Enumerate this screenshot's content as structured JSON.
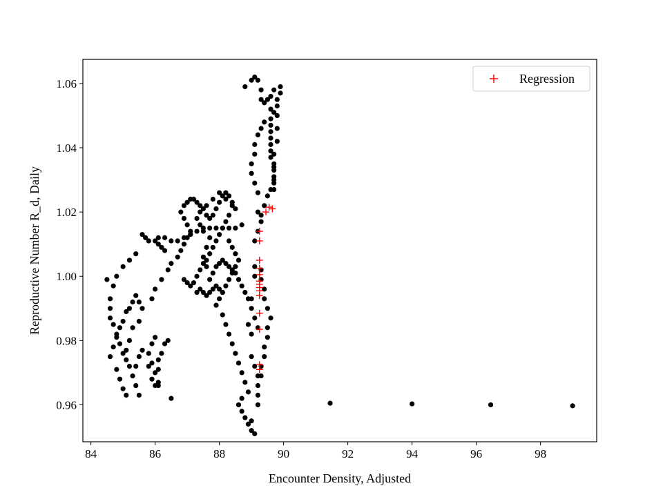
{
  "chart_data": {
    "type": "scatter",
    "title": "",
    "xlabel": "Encounter Density, Adjusted",
    "ylabel": "Reproductive Number R_d, Daily",
    "xlim": [
      83.75,
      99.75
    ],
    "ylim": [
      0.9485,
      1.0675
    ],
    "x_ticks": [
      84,
      86,
      88,
      90,
      92,
      94,
      96,
      98
    ],
    "y_ticks": [
      0.96,
      0.98,
      1.0,
      1.02,
      1.04,
      1.06
    ],
    "x_tick_labels": [
      "84",
      "86",
      "88",
      "90",
      "92",
      "94",
      "96",
      "98"
    ],
    "y_tick_labels": [
      "0.96",
      "0.98",
      "1.00",
      "1.02",
      "1.04",
      "1.06"
    ],
    "grid": false,
    "legend_position": "top-right",
    "series": [
      {
        "marker": "circle",
        "color": "#000000",
        "points": [
          [
            84.5,
            0.999
          ],
          [
            84.6,
            0.993
          ],
          [
            84.7,
            0.997
          ],
          [
            84.6,
            0.99
          ],
          [
            84.6,
            0.987
          ],
          [
            84.7,
            0.985
          ],
          [
            84.8,
            0.982
          ],
          [
            84.9,
            0.979
          ],
          [
            85.0,
            0.976
          ],
          [
            85.1,
            0.974
          ],
          [
            85.2,
            0.972
          ],
          [
            85.3,
            0.969
          ],
          [
            85.4,
            0.966
          ],
          [
            85.5,
            0.963
          ],
          [
            85.3,
            0.984
          ],
          [
            85.2,
            0.98
          ],
          [
            85.1,
            0.977
          ],
          [
            84.6,
            0.975
          ],
          [
            84.8,
            1.0
          ],
          [
            85.0,
            1.003
          ],
          [
            85.2,
            1.005
          ],
          [
            85.4,
            1.007
          ],
          [
            85.6,
            1.013
          ],
          [
            85.7,
            1.012
          ],
          [
            85.8,
            1.011
          ],
          [
            86.0,
            1.011
          ],
          [
            86.1,
            1.01
          ],
          [
            86.2,
            1.009
          ],
          [
            86.3,
            1.008
          ],
          [
            86.1,
            1.012
          ],
          [
            86.3,
            1.012
          ],
          [
            86.5,
            1.011
          ],
          [
            86.7,
            1.011
          ],
          [
            86.9,
            1.012
          ],
          [
            87.1,
            1.013
          ],
          [
            87.3,
            1.014
          ],
          [
            87.5,
            1.015
          ],
          [
            87.7,
            1.015
          ],
          [
            87.9,
            1.015
          ],
          [
            88.1,
            1.015
          ],
          [
            88.3,
            1.015
          ],
          [
            88.5,
            1.015
          ],
          [
            88.7,
            1.016
          ],
          [
            85.8,
            0.972
          ],
          [
            85.9,
            0.968
          ],
          [
            86.0,
            0.966
          ],
          [
            86.1,
            0.966
          ],
          [
            86.0,
            0.97
          ],
          [
            85.9,
            0.973
          ],
          [
            85.8,
            0.976
          ],
          [
            85.9,
            0.979
          ],
          [
            86.0,
            0.981
          ],
          [
            86.1,
            0.974
          ],
          [
            86.1,
            0.971
          ],
          [
            86.1,
            0.967
          ],
          [
            86.2,
            0.976
          ],
          [
            86.3,
            0.979
          ],
          [
            86.4,
            0.98
          ],
          [
            85.6,
            0.977
          ],
          [
            85.5,
            0.975
          ],
          [
            85.4,
            0.972
          ],
          [
            85.5,
            0.986
          ],
          [
            85.6,
            0.99
          ],
          [
            85.5,
            0.992
          ],
          [
            85.4,
            0.994
          ],
          [
            85.3,
            0.992
          ],
          [
            85.2,
            0.99
          ],
          [
            85.1,
            0.989
          ],
          [
            85.0,
            0.986
          ],
          [
            84.9,
            0.984
          ],
          [
            84.8,
            0.981
          ],
          [
            84.7,
            0.978
          ],
          [
            84.8,
            0.971
          ],
          [
            84.9,
            0.968
          ],
          [
            85.0,
            0.965
          ],
          [
            85.1,
            0.963
          ],
          [
            86.5,
            0.962
          ],
          [
            85.9,
            0.993
          ],
          [
            86.0,
            0.996
          ],
          [
            86.2,
            0.999
          ],
          [
            86.4,
            1.002
          ],
          [
            86.5,
            1.004
          ],
          [
            86.7,
            1.006
          ],
          [
            86.8,
            1.008
          ],
          [
            86.9,
            1.01
          ],
          [
            87.0,
            1.012
          ],
          [
            87.1,
            1.014
          ],
          [
            87.0,
            1.016
          ],
          [
            86.9,
            1.018
          ],
          [
            86.8,
            1.02
          ],
          [
            86.9,
            1.022
          ],
          [
            87.0,
            1.023
          ],
          [
            87.1,
            1.024
          ],
          [
            87.2,
            1.024
          ],
          [
            87.3,
            1.023
          ],
          [
            87.4,
            1.022
          ],
          [
            87.5,
            1.021
          ],
          [
            87.6,
            1.019
          ],
          [
            87.7,
            1.018
          ],
          [
            87.8,
            1.019
          ],
          [
            87.9,
            1.021
          ],
          [
            88.0,
            1.023
          ],
          [
            88.1,
            1.025
          ],
          [
            88.2,
            1.026
          ],
          [
            88.3,
            1.025
          ],
          [
            88.4,
            1.023
          ],
          [
            88.5,
            1.021
          ],
          [
            88.3,
            1.019
          ],
          [
            88.2,
            1.017
          ],
          [
            88.1,
            1.015
          ],
          [
            88.0,
            1.013
          ],
          [
            87.9,
            1.011
          ],
          [
            87.8,
            1.009
          ],
          [
            87.7,
            1.007
          ],
          [
            87.6,
            1.005
          ],
          [
            87.5,
            1.004
          ],
          [
            87.4,
            1.002
          ],
          [
            87.3,
            1.0
          ],
          [
            87.2,
            0.998
          ],
          [
            87.1,
            0.997
          ],
          [
            87.0,
            0.998
          ],
          [
            86.9,
            0.999
          ],
          [
            87.3,
            0.995
          ],
          [
            87.4,
            0.996
          ],
          [
            87.5,
            0.995
          ],
          [
            87.6,
            0.994
          ],
          [
            87.7,
            0.995
          ],
          [
            87.8,
            0.996
          ],
          [
            87.9,
            0.997
          ],
          [
            88.0,
            0.996
          ],
          [
            88.1,
            0.995
          ],
          [
            87.7,
            0.999
          ],
          [
            87.8,
            1.001
          ],
          [
            87.9,
            1.003
          ],
          [
            88.0,
            1.004
          ],
          [
            88.1,
            1.005
          ],
          [
            88.2,
            1.004
          ],
          [
            88.3,
            1.003
          ],
          [
            88.4,
            1.002
          ],
          [
            88.5,
            1.001
          ],
          [
            88.6,
            0.999
          ],
          [
            88.7,
            0.997
          ],
          [
            87.6,
            1.003
          ],
          [
            87.5,
            1.006
          ],
          [
            87.6,
            1.009
          ],
          [
            87.7,
            1.012
          ],
          [
            87.5,
            1.014
          ],
          [
            87.4,
            1.016
          ],
          [
            87.3,
            1.018
          ],
          [
            87.4,
            1.02
          ],
          [
            87.6,
            1.022
          ],
          [
            87.8,
            1.024
          ],
          [
            88.0,
            1.026
          ],
          [
            88.2,
            1.024
          ],
          [
            88.4,
            1.022
          ],
          [
            88.3,
            1.011
          ],
          [
            88.4,
            1.009
          ],
          [
            88.5,
            1.007
          ],
          [
            88.6,
            1.005
          ],
          [
            88.5,
            1.003
          ],
          [
            88.4,
            1.001
          ],
          [
            88.3,
            0.999
          ],
          [
            88.2,
            0.997
          ],
          [
            88.1,
            0.995
          ],
          [
            88.0,
            0.993
          ],
          [
            87.9,
            0.991
          ],
          [
            88.1,
            0.988
          ],
          [
            88.2,
            0.985
          ],
          [
            88.3,
            0.982
          ],
          [
            88.4,
            0.979
          ],
          [
            88.5,
            0.976
          ],
          [
            88.6,
            0.973
          ],
          [
            88.7,
            0.97
          ],
          [
            88.8,
            0.967
          ],
          [
            88.9,
            0.964
          ],
          [
            88.7,
            0.962
          ],
          [
            88.6,
            0.96
          ],
          [
            88.7,
            0.958
          ],
          [
            88.8,
            0.956
          ],
          [
            88.9,
            0.954
          ],
          [
            89.0,
            0.952
          ],
          [
            89.1,
            0.951
          ],
          [
            89.0,
            0.955
          ],
          [
            89.2,
            0.96
          ],
          [
            89.2,
            0.963
          ],
          [
            89.2,
            0.966
          ],
          [
            89.3,
            0.969
          ],
          [
            89.3,
            0.972
          ],
          [
            89.4,
            0.975
          ],
          [
            89.4,
            0.978
          ],
          [
            89.5,
            0.981
          ],
          [
            89.5,
            0.984
          ],
          [
            89.6,
            0.987
          ],
          [
            89.5,
            0.99
          ],
          [
            89.4,
            0.993
          ],
          [
            89.4,
            0.996
          ],
          [
            89.3,
            0.999
          ],
          [
            89.3,
            1.002
          ],
          [
            88.8,
            0.995
          ],
          [
            88.9,
            0.993
          ],
          [
            89.0,
            0.99
          ],
          [
            89.1,
            0.987
          ],
          [
            89.2,
            0.984
          ],
          [
            89.0,
            0.975
          ],
          [
            89.1,
            0.972
          ],
          [
            89.2,
            0.969
          ],
          [
            89.0,
            0.982
          ],
          [
            88.9,
            0.985
          ],
          [
            89.0,
            0.993
          ],
          [
            89.1,
            1.0
          ],
          [
            89.1,
            1.003
          ],
          [
            89.1,
            1.011
          ],
          [
            89.2,
            1.014
          ],
          [
            89.3,
            1.017
          ],
          [
            89.2,
            1.02
          ],
          [
            89.3,
            1.019
          ],
          [
            89.4,
            1.022
          ],
          [
            89.5,
            1.025
          ],
          [
            89.6,
            1.027
          ],
          [
            89.7,
            1.029
          ],
          [
            89.7,
            1.031
          ],
          [
            89.7,
            1.033
          ],
          [
            89.7,
            1.035
          ],
          [
            89.6,
            1.037
          ],
          [
            89.6,
            1.039
          ],
          [
            89.6,
            1.041
          ],
          [
            89.6,
            1.043
          ],
          [
            89.6,
            1.045
          ],
          [
            89.6,
            1.047
          ],
          [
            89.6,
            1.049
          ],
          [
            89.7,
            1.051
          ],
          [
            89.8,
            1.053
          ],
          [
            89.8,
            1.055
          ],
          [
            89.9,
            1.057
          ],
          [
            89.9,
            1.059
          ],
          [
            89.7,
            1.058
          ],
          [
            89.6,
            1.056
          ],
          [
            89.5,
            1.055
          ],
          [
            89.4,
            1.054
          ],
          [
            89.3,
            1.055
          ],
          [
            89.3,
            1.058
          ],
          [
            89.2,
            1.061
          ],
          [
            89.1,
            1.062
          ],
          [
            89.0,
            1.061
          ],
          [
            88.8,
            1.059
          ],
          [
            89.4,
            1.048
          ],
          [
            89.3,
            1.046
          ],
          [
            89.2,
            1.044
          ],
          [
            89.1,
            1.041
          ],
          [
            89.1,
            1.038
          ],
          [
            89.0,
            1.035
          ],
          [
            89.0,
            1.032
          ],
          [
            89.1,
            1.029
          ],
          [
            89.2,
            1.026
          ],
          [
            89.6,
            1.052
          ],
          [
            89.8,
            1.05
          ],
          [
            89.8,
            1.046
          ],
          [
            89.8,
            1.042
          ],
          [
            89.7,
            1.038
          ],
          [
            89.7,
            1.034
          ],
          [
            89.7,
            1.03
          ],
          [
            89.7,
            1.027
          ],
          [
            91.45,
            0.9605
          ],
          [
            94.0,
            0.9603
          ],
          [
            96.45,
            0.96
          ],
          [
            99.0,
            0.9597
          ]
        ]
      },
      {
        "name": "Regression",
        "marker": "plus",
        "color": "#ff0000",
        "points": [
          [
            89.25,
            0.971
          ],
          [
            89.25,
            0.9725
          ],
          [
            89.25,
            0.9835
          ],
          [
            89.25,
            0.9885
          ],
          [
            89.25,
            0.994
          ],
          [
            89.25,
            0.9955
          ],
          [
            89.25,
            0.9965
          ],
          [
            89.25,
            0.9975
          ],
          [
            89.25,
            0.9985
          ],
          [
            89.25,
            1.0005
          ],
          [
            89.25,
            1.0025
          ],
          [
            89.25,
            1.005
          ],
          [
            89.25,
            1.011
          ],
          [
            89.25,
            1.014
          ],
          [
            89.45,
            1.02
          ],
          [
            89.55,
            1.0215
          ],
          [
            89.65,
            1.021
          ]
        ]
      }
    ]
  }
}
